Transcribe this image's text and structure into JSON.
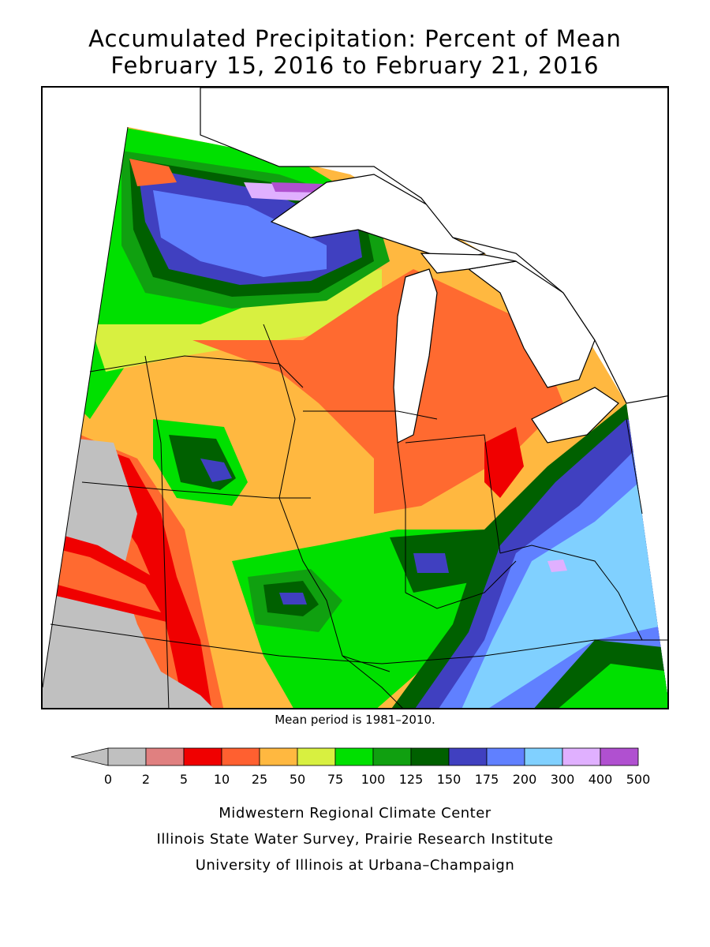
{
  "title": {
    "line1": "Accumulated Precipitation: Percent of Mean",
    "line2": "February 15, 2016 to February 21, 2016"
  },
  "mean_note": "Mean period is 1981–2010.",
  "legend": {
    "ticks": [
      "0",
      "2",
      "5",
      "10",
      "25",
      "50",
      "75",
      "100",
      "125",
      "150",
      "175",
      "200",
      "300",
      "400",
      "500"
    ],
    "colors": [
      "#c0c0c0",
      "#e08080",
      "#f00000",
      "#ff6030",
      "#ffb840",
      "#d8f040",
      "#00e000",
      "#10a010",
      "#006000",
      "#4040c0",
      "#6080ff",
      "#80d0ff",
      "#e0b0ff",
      "#b050d0"
    ]
  },
  "colors": {
    "lake": "#ffffff",
    "border": "#000000",
    "orange": "#ff6a30",
    "lightorange": "#ffb840",
    "yellow": "#d8f040",
    "green": "#00e000",
    "midgreen": "#10a010",
    "darkgreen": "#006000",
    "darkblue": "#4040c0",
    "blue": "#6080ff",
    "lightblue": "#80d0ff",
    "lavender": "#e0b0ff",
    "purple": "#b050d0",
    "gray": "#c0c0c0",
    "pink": "#e08080",
    "red": "#f00000"
  },
  "credits": {
    "line1": "Midwestern Regional Climate Center",
    "line2": "Illinois State Water Survey, Prairie Research Institute",
    "line3": "University of Illinois at Urbana–Champaign"
  }
}
